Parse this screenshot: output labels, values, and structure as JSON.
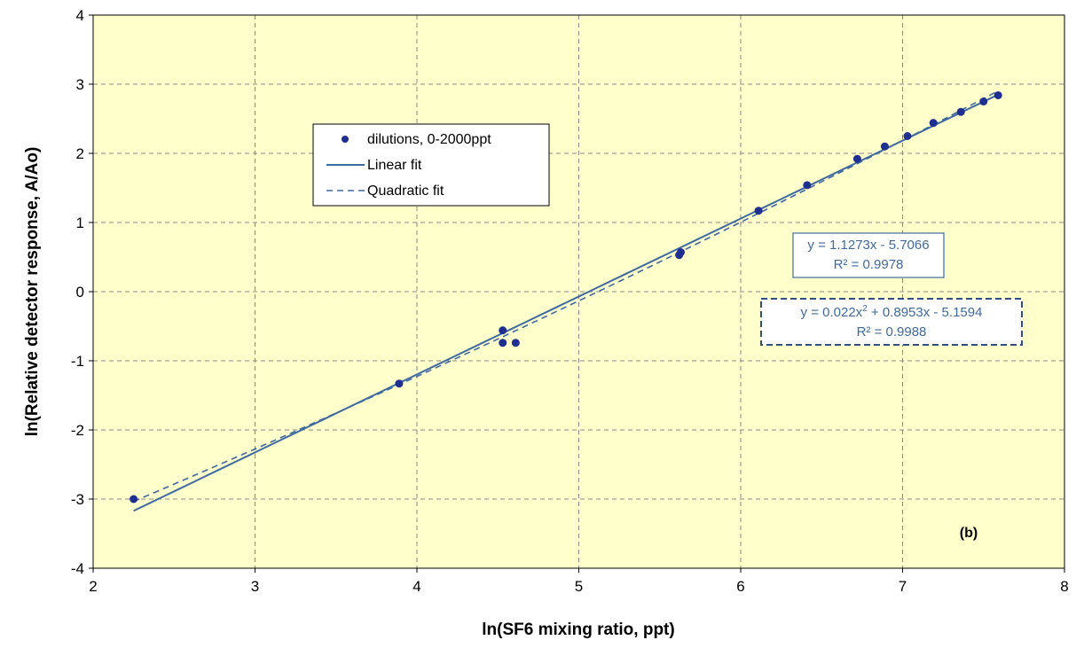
{
  "colors": {
    "plot_background": "#ffffcc",
    "point_color": "#1f2f8f",
    "fit_line_color": "#3f6aa0",
    "grid_color": "#888888",
    "equation_text_color": "#3f6aa0"
  },
  "chart_data": {
    "type": "scatter",
    "xlabel": "ln(SF6 mixing ratio, ppt)",
    "ylabel": "ln(Relative detector response, A/Ao)",
    "xlim": [
      2,
      8
    ],
    "ylim": [
      -4,
      4
    ],
    "x_ticks": [
      "2",
      "3",
      "4",
      "5",
      "6",
      "7",
      "8"
    ],
    "y_ticks": [
      "-4",
      "-3",
      "-2",
      "-1",
      "0",
      "1",
      "2",
      "3",
      "4"
    ],
    "grid": true,
    "grid_style": "dashed",
    "legend_position": "upper-left",
    "panel_label": "(b)",
    "series": [
      {
        "name": "dilutions, 0-2000ppt",
        "kind": "points",
        "x": [
          2.25,
          3.89,
          4.53,
          4.53,
          4.61,
          5.62,
          5.63,
          6.11,
          6.41,
          6.72,
          6.89,
          7.03,
          7.19,
          7.36,
          7.5,
          7.59
        ],
        "y": [
          -3.0,
          -1.33,
          -0.56,
          -0.74,
          -0.74,
          0.53,
          0.57,
          1.17,
          1.54,
          1.92,
          2.1,
          2.25,
          2.44,
          2.6,
          2.75,
          2.84
        ]
      },
      {
        "name": "Linear fit",
        "kind": "line",
        "style": "solid",
        "coefficients": [
          -5.7066,
          1.1273
        ],
        "x_range": [
          2.25,
          7.59
        ]
      },
      {
        "name": "Quadratic fit",
        "kind": "line",
        "style": "dashed",
        "coefficients": [
          -5.1594,
          0.8953,
          0.022
        ],
        "x_range": [
          2.25,
          7.59
        ]
      }
    ],
    "annotations": [
      {
        "line1": "y = 1.1273x - 5.7066",
        "line2": "R² = 0.9978",
        "border": "solid"
      },
      {
        "line1_pre": "y = 0.022x",
        "line1_sup": "2",
        "line1_post": " + 0.8953x - 5.1594",
        "line2": "R² = 0.9988",
        "border": "dashed"
      }
    ]
  }
}
